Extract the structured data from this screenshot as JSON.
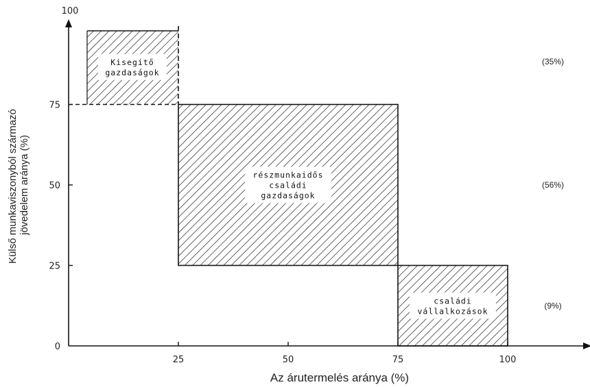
{
  "chart_data": {
    "type": "area",
    "xlabel": "Az árutermelés aránya (%)",
    "ylabel": [
      "Külső munkaviszonyból származó",
      "jövedelem aránya (%)"
    ],
    "xlim": [
      0,
      100
    ],
    "ylim": [
      0,
      100
    ],
    "x_ticks": [
      "25",
      "50",
      "75",
      "100"
    ],
    "y_ticks": [
      "0",
      "25",
      "50",
      "75",
      "100"
    ],
    "regions": [
      {
        "name": "kisegito",
        "label_lines": [
          "Kisegitő",
          "gazdaságok"
        ],
        "x": [
          0,
          25
        ],
        "y": [
          75,
          100
        ],
        "share": "(35%)",
        "dashed": true
      },
      {
        "name": "reszmunkaidos",
        "label_lines": [
          "részmunkaidős",
          "családi",
          "gazdaságok"
        ],
        "x": [
          25,
          75
        ],
        "y": [
          25,
          75
        ],
        "share": "(56%)",
        "dashed": false
      },
      {
        "name": "csaladi-vallalkozasok",
        "label_lines": [
          "családi",
          "vállalkozások"
        ],
        "x": [
          75,
          100
        ],
        "y": [
          0,
          25
        ],
        "share": "(9%)",
        "dashed": false
      }
    ]
  }
}
